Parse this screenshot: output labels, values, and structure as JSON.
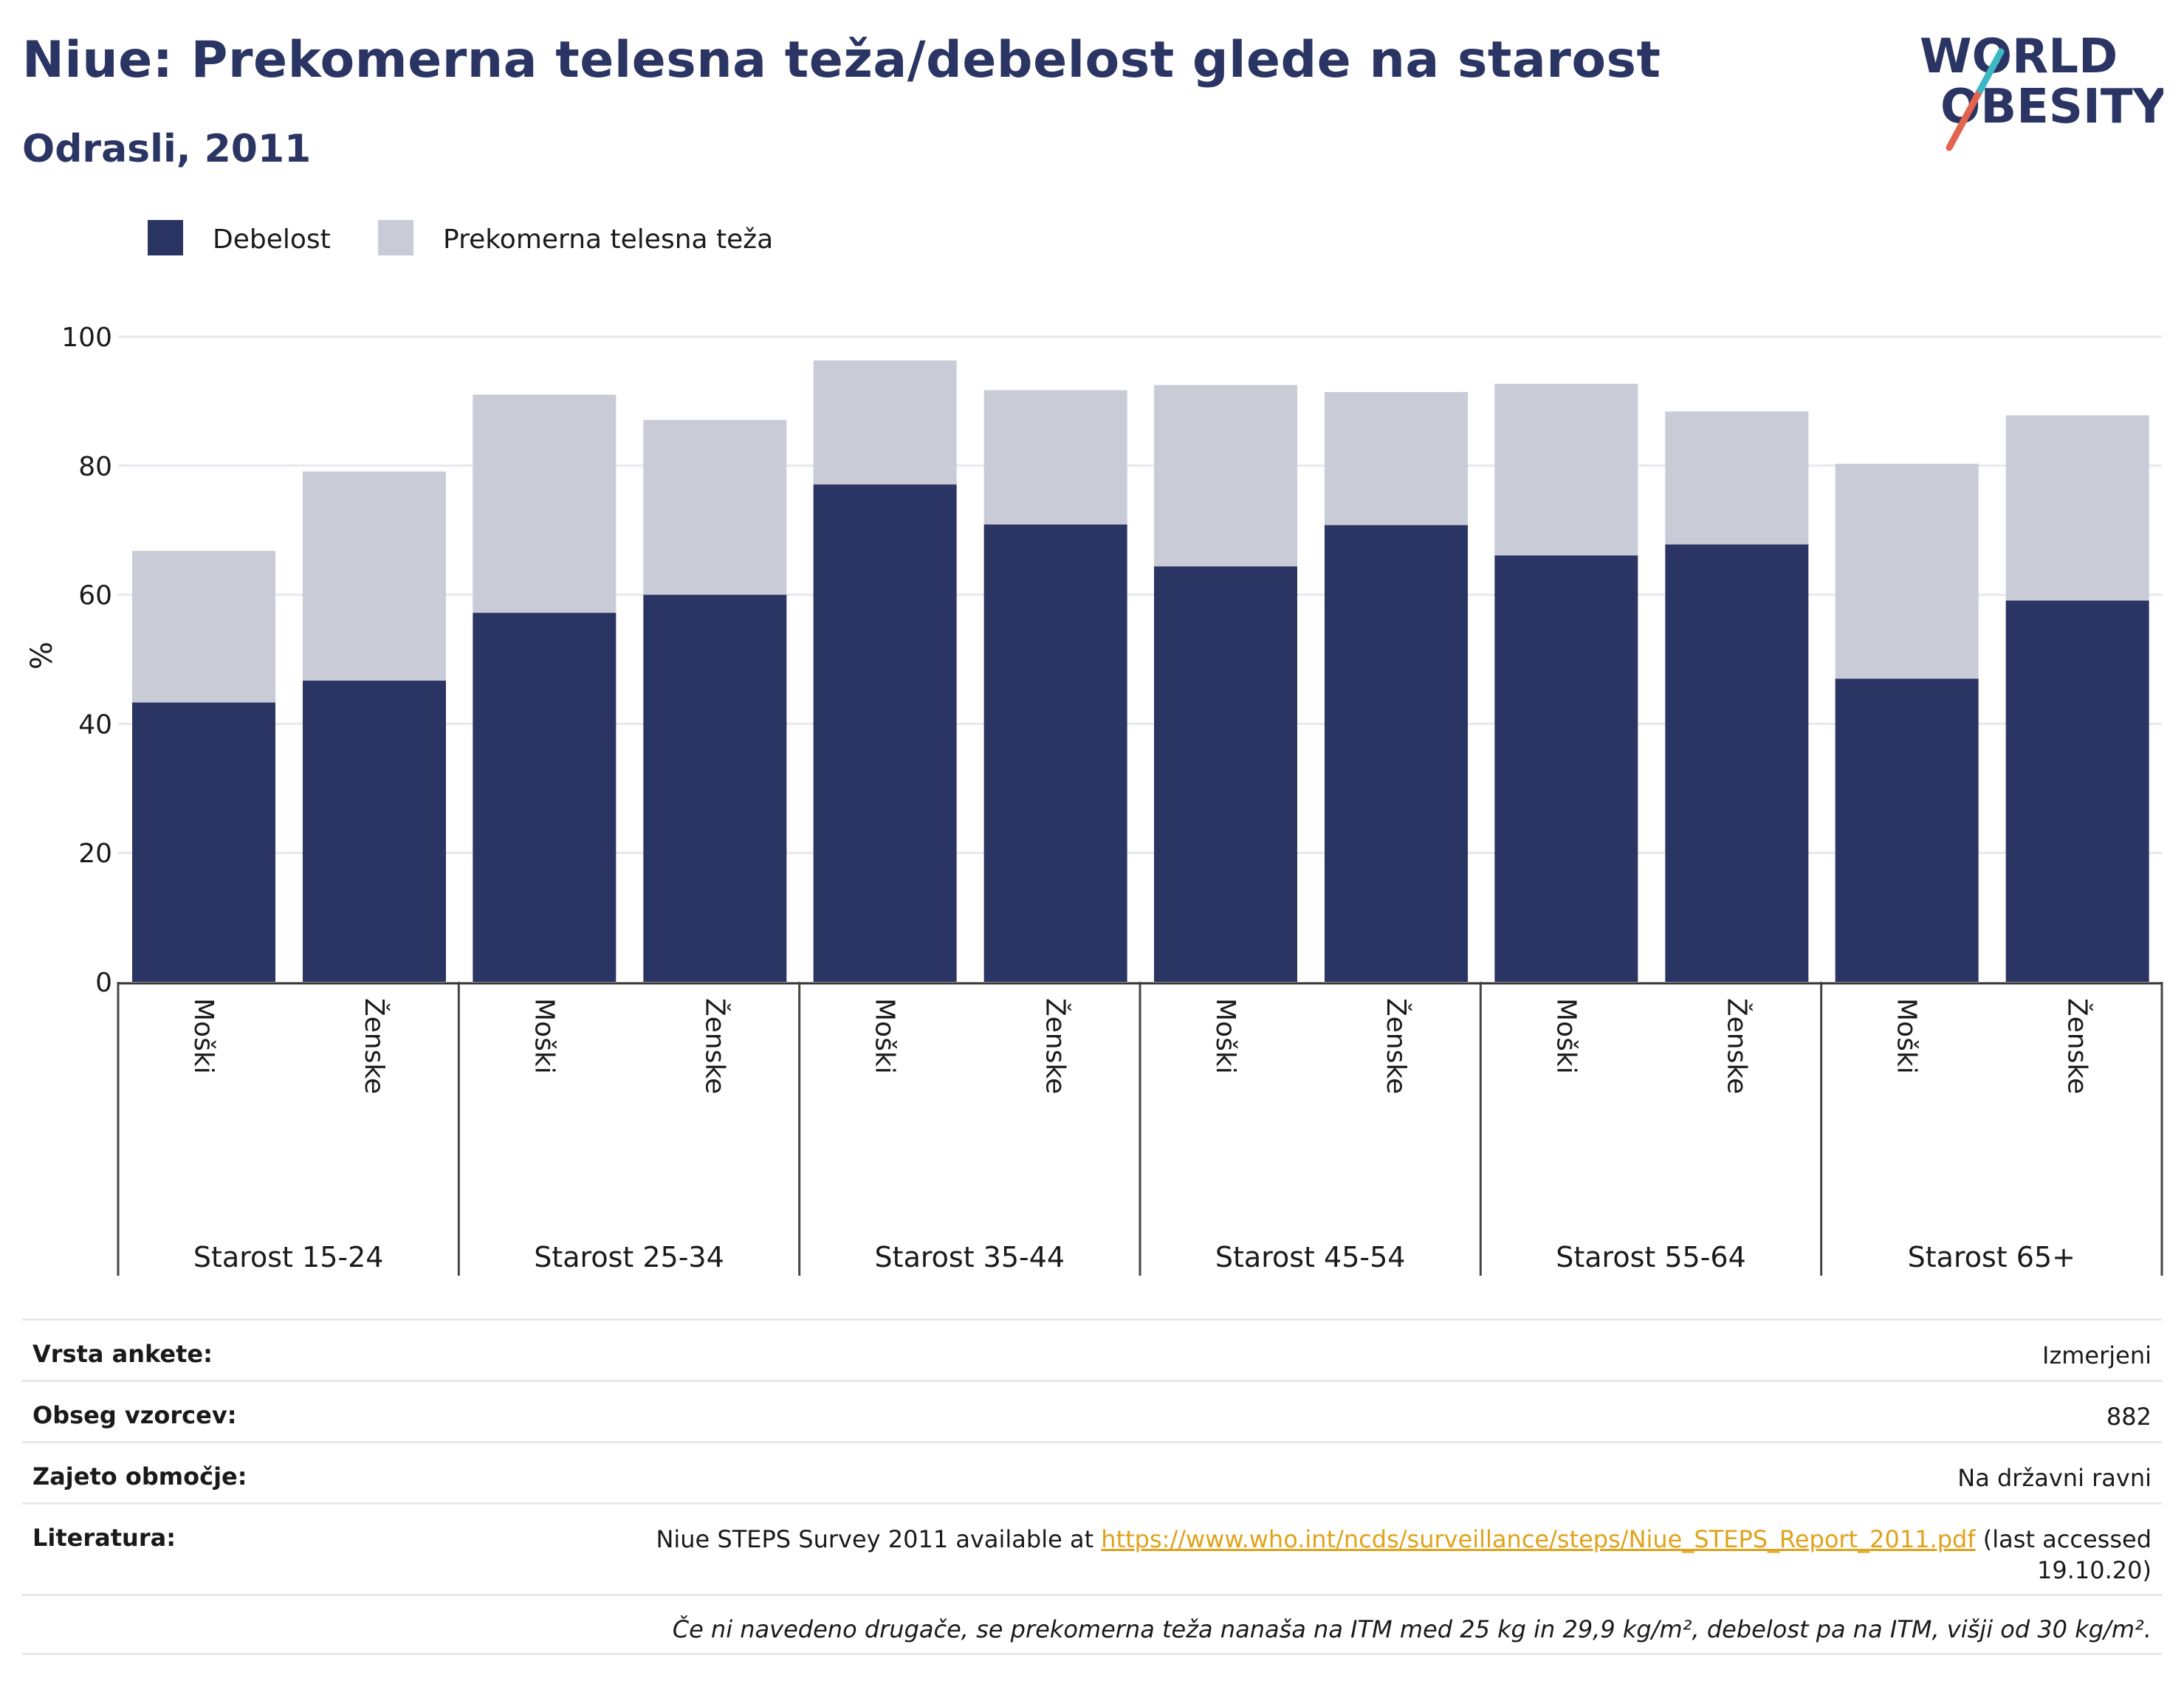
{
  "title": "Niue: Prekomerna telesna teža/debelost glede na starost",
  "subtitle": "Odrasli, 2011",
  "logo": {
    "line1": "WORLD",
    "line2": "OBESITY"
  },
  "colors": {
    "obesity": "#2b3564",
    "overweight": "#c9cbd7",
    "accent_red": "#e3634f",
    "accent_teal": "#3bb8c4",
    "grid": "#e6e8ee",
    "text": "#1a1a1a"
  },
  "chart_data": {
    "type": "bar",
    "stacked": true,
    "ylabel": "%",
    "ylim": [
      0,
      100
    ],
    "yticks": [
      0,
      20,
      40,
      60,
      80,
      100
    ],
    "grid": true,
    "legend_position": "top-left",
    "groups": [
      "Starost 15-24",
      "Starost 25-34",
      "Starost 35-44",
      "Starost 45-54",
      "Starost 55-64",
      "Starost 65+"
    ],
    "categories": [
      "Moški",
      "Ženske"
    ],
    "series": [
      {
        "name": "Debelost",
        "values": [
          [
            43.3,
            46.7
          ],
          [
            57.2,
            60.0
          ],
          [
            77.1,
            70.9
          ],
          [
            64.4,
            70.8
          ],
          [
            66.1,
            67.8
          ],
          [
            47.0,
            59.1
          ]
        ]
      },
      {
        "name": "Prekomerna telesna teža",
        "values": [
          [
            23.5,
            32.4
          ],
          [
            33.8,
            27.1
          ],
          [
            19.2,
            20.8
          ],
          [
            28.1,
            20.6
          ],
          [
            26.6,
            20.6
          ],
          [
            33.3,
            28.7
          ]
        ]
      }
    ]
  },
  "footer": {
    "survey_type_label": "Vrsta ankete:",
    "survey_type_value": "Izmerjeni",
    "sample_size_label": "Obseg vzorcev:",
    "sample_size_value": "882",
    "area_label": "Zajeto območje:",
    "area_value": "Na državni ravni",
    "reference_label": "Literatura:",
    "reference_prefix": "Niue STEPS Survey 2011 available at ",
    "reference_link": "https://www.who.int/ncds/surveillance/steps/Niue_STEPS_Report_2011.pdf",
    "reference_suffix_1": " (last accessed",
    "reference_suffix_2": "19.10.20)",
    "note": "Če ni navedeno drugače, se prekomerna teža nanaša na ITM med 25 kg in 29,9 kg/m², debelost pa na ITM, višji od 30 kg/m²."
  }
}
